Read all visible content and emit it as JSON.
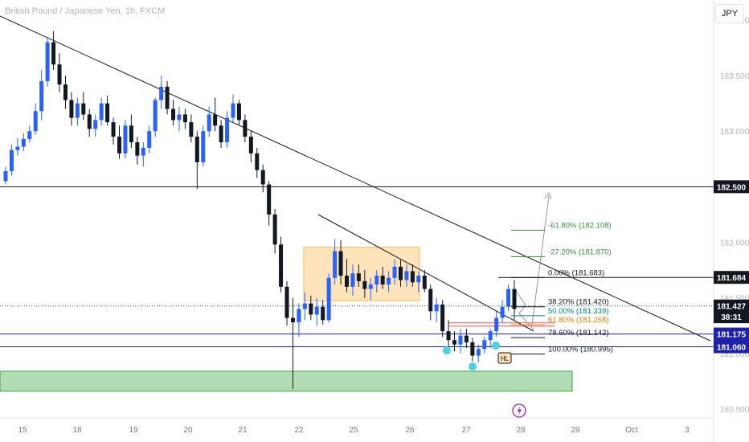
{
  "chart_title": "British Pound / Japanese Yen, 1h, FXCM",
  "currency_button": "JPY",
  "colors": {
    "up": "#2962ff",
    "down": "#131722",
    "trendline": "#131722",
    "support_zone": "#a5d6a7",
    "consolidation_box": "#ffe0b2",
    "blue_level": "#1e22aa",
    "fib_green": "#388e3c",
    "fib_orange": "#f57c00",
    "fib_teal": "#00897b",
    "price_label_bg": "#131722"
  },
  "chart_data": {
    "type": "candlestick",
    "title": "British Pound / Japanese Yen, 1h, FXCM",
    "ylim": [
      180.42,
      184.18
    ],
    "price_ticks": [
      "184.000",
      "183.500",
      "183.000",
      "182.500",
      "182.000",
      "181.500",
      "181.000",
      "180.500"
    ],
    "time_ticks": [
      "15",
      "18",
      "19",
      "20",
      "21",
      "22",
      "25",
      "26",
      "27",
      "28",
      "29",
      "Oct",
      "3"
    ],
    "price_scale_labels": [
      {
        "text": "182.500",
        "price": 182.5,
        "style": "dark"
      },
      {
        "text": "181.684",
        "price": 181.684,
        "style": "dark"
      },
      {
        "text": "181.427",
        "price": 181.427,
        "style": "dark"
      },
      {
        "text": "38:31",
        "price": 181.33,
        "style": "dark"
      },
      {
        "text": "181.175",
        "price": 181.175,
        "style": "blue"
      },
      {
        "text": "181.060",
        "price": 181.06,
        "style": "blue"
      }
    ],
    "horizontal_levels": [
      {
        "price": 182.5,
        "color": "#131722"
      },
      {
        "price": 181.684,
        "color": "#131722"
      },
      {
        "price": 181.175,
        "color": "#1e22aa"
      },
      {
        "price": 181.06,
        "color": "#1e22aa"
      }
    ],
    "current_price": 181.427,
    "support_zone": {
      "price_top": 180.84,
      "price_bottom": 180.66
    },
    "consolidation_box": {
      "price_top": 181.955,
      "price_bottom": 181.475
    },
    "fib_levels": [
      {
        "text": "-61.80% (182.108)",
        "price": 182.108,
        "color": "#388e3c"
      },
      {
        "text": "-27.20% (181.870)",
        "price": 181.87,
        "color": "#388e3c"
      },
      {
        "text": "0.00% (181.683)",
        "price": 181.683,
        "color": "#131722"
      },
      {
        "text": "38.20% (181.420)",
        "price": 181.42,
        "color": "#131722"
      },
      {
        "text": "50.00% (181.339)",
        "price": 181.339,
        "color": "#00897b"
      },
      {
        "text": "61.80% (181.258)",
        "price": 181.258,
        "color": "#f57c00"
      },
      {
        "text": "78.60% (181.142)",
        "price": 181.142,
        "color": "#131722"
      },
      {
        "text": "100.00% (180.995)",
        "price": 180.995,
        "color": "#131722"
      }
    ],
    "annotations": [
      "HL"
    ],
    "candles": [
      [
        182.55,
        182.68,
        182.52,
        182.64
      ],
      [
        182.64,
        182.88,
        182.6,
        182.83
      ],
      [
        182.83,
        182.94,
        182.78,
        182.86
      ],
      [
        182.86,
        182.98,
        182.82,
        182.93
      ],
      [
        182.93,
        183.05,
        182.9,
        183.0
      ],
      [
        183.0,
        183.25,
        182.97,
        183.18
      ],
      [
        183.18,
        183.55,
        183.1,
        183.45
      ],
      [
        183.45,
        183.85,
        183.4,
        183.8
      ],
      [
        183.8,
        183.9,
        183.55,
        183.6
      ],
      [
        183.6,
        183.7,
        183.35,
        183.42
      ],
      [
        183.42,
        183.5,
        183.2,
        183.28
      ],
      [
        183.28,
        183.35,
        183.05,
        183.12
      ],
      [
        183.12,
        183.3,
        183.05,
        183.25
      ],
      [
        183.25,
        183.35,
        183.1,
        183.15
      ],
      [
        183.15,
        183.2,
        182.95,
        183.02
      ],
      [
        183.02,
        183.15,
        182.95,
        183.1
      ],
      [
        183.1,
        183.3,
        183.05,
        183.25
      ],
      [
        183.25,
        183.32,
        183.05,
        183.08
      ],
      [
        183.08,
        183.12,
        182.88,
        182.95
      ],
      [
        182.95,
        183.05,
        182.75,
        182.8
      ],
      [
        182.8,
        183.1,
        182.75,
        183.05
      ],
      [
        183.05,
        183.15,
        182.85,
        182.9
      ],
      [
        182.9,
        182.95,
        182.7,
        182.78
      ],
      [
        182.78,
        182.9,
        182.68,
        182.85
      ],
      [
        182.85,
        183.05,
        182.8,
        183.0
      ],
      [
        183.0,
        183.3,
        182.95,
        183.28
      ],
      [
        183.28,
        183.5,
        183.2,
        183.4
      ],
      [
        183.4,
        183.45,
        183.15,
        183.2
      ],
      [
        183.2,
        183.28,
        183.05,
        183.1
      ],
      [
        183.1,
        183.22,
        183.0,
        183.15
      ],
      [
        183.15,
        183.2,
        183.02,
        183.08
      ],
      [
        183.08,
        183.15,
        182.9,
        182.95
      ],
      [
        182.95,
        183.0,
        182.48,
        182.72
      ],
      [
        182.72,
        183.05,
        182.68,
        183.0
      ],
      [
        183.0,
        183.22,
        182.95,
        183.15
      ],
      [
        183.15,
        183.3,
        183.0,
        183.05
      ],
      [
        183.05,
        183.1,
        182.85,
        182.9
      ],
      [
        182.9,
        183.18,
        182.85,
        183.12
      ],
      [
        183.12,
        183.33,
        183.08,
        183.25
      ],
      [
        183.25,
        183.28,
        183.05,
        183.1
      ],
      [
        183.1,
        183.15,
        182.9,
        182.95
      ],
      [
        182.95,
        183.0,
        182.72,
        182.8
      ],
      [
        182.8,
        182.85,
        182.58,
        182.65
      ],
      [
        182.65,
        182.7,
        182.45,
        182.52
      ],
      [
        182.52,
        182.55,
        182.15,
        182.25
      ],
      [
        182.25,
        182.3,
        181.9,
        181.98
      ],
      [
        181.98,
        182.05,
        181.55,
        181.6
      ],
      [
        181.6,
        181.65,
        181.25,
        181.32
      ],
      [
        181.32,
        181.5,
        180.68,
        181.28
      ],
      [
        181.28,
        181.45,
        181.15,
        181.4
      ],
      [
        181.4,
        181.55,
        181.3,
        181.45
      ],
      [
        181.45,
        181.52,
        181.3,
        181.35
      ],
      [
        181.35,
        181.5,
        181.25,
        181.42
      ],
      [
        181.42,
        181.48,
        181.26,
        181.3
      ],
      [
        181.3,
        181.72,
        181.28,
        181.68
      ],
      [
        181.68,
        182.03,
        181.62,
        181.92
      ],
      [
        181.92,
        182.02,
        181.62,
        181.7
      ],
      [
        181.7,
        181.85,
        181.55,
        181.6
      ],
      [
        181.6,
        181.8,
        181.52,
        181.72
      ],
      [
        181.72,
        181.8,
        181.6,
        181.65
      ],
      [
        181.65,
        181.75,
        181.5,
        181.58
      ],
      [
        181.58,
        181.68,
        181.48,
        181.62
      ],
      [
        181.62,
        181.75,
        181.55,
        181.7
      ],
      [
        181.7,
        181.78,
        181.58,
        181.62
      ],
      [
        181.62,
        181.74,
        181.55,
        181.68
      ],
      [
        181.68,
        181.85,
        181.62,
        181.78
      ],
      [
        181.78,
        181.84,
        181.6,
        181.66
      ],
      [
        181.66,
        181.8,
        181.6,
        181.74
      ],
      [
        181.74,
        181.8,
        181.6,
        181.64
      ],
      [
        181.64,
        181.74,
        181.55,
        181.7
      ],
      [
        181.7,
        181.75,
        181.55,
        181.58
      ],
      [
        181.58,
        181.62,
        181.3,
        181.38
      ],
      [
        181.38,
        181.5,
        181.28,
        181.44
      ],
      [
        181.44,
        181.48,
        181.15,
        181.2
      ],
      [
        181.2,
        181.3,
        181.05,
        181.12
      ],
      [
        181.12,
        181.2,
        181.02,
        181.08
      ],
      [
        181.08,
        181.22,
        181.0,
        181.16
      ],
      [
        181.16,
        181.22,
        181.05,
        181.1
      ],
      [
        181.1,
        181.14,
        180.93,
        180.98
      ],
      [
        180.98,
        181.08,
        180.92,
        181.04
      ],
      [
        181.04,
        181.15,
        181.0,
        181.12
      ],
      [
        181.12,
        181.22,
        181.05,
        181.2
      ],
      [
        181.2,
        181.38,
        181.15,
        181.32
      ],
      [
        181.32,
        181.48,
        181.28,
        181.42
      ],
      [
        181.42,
        181.62,
        181.38,
        181.58
      ],
      [
        181.58,
        181.66,
        181.3,
        181.4
      ]
    ]
  }
}
